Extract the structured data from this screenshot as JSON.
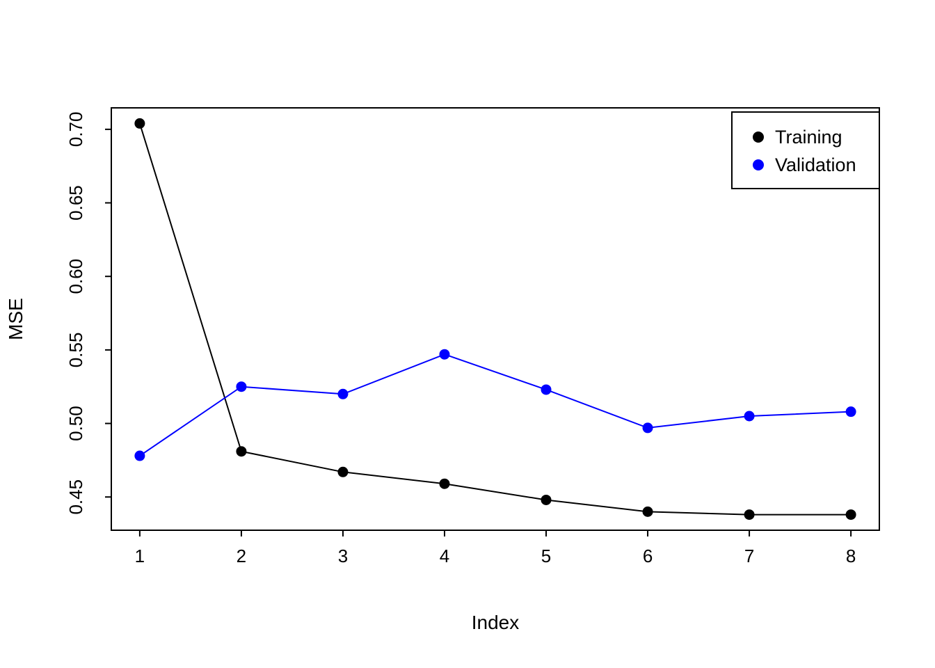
{
  "chart_data": {
    "type": "line",
    "title": "",
    "xlabel": "Index",
    "ylabel": "MSE",
    "x": [
      1,
      2,
      3,
      4,
      5,
      6,
      7,
      8
    ],
    "series": [
      {
        "name": "Training",
        "color": "#000000",
        "values": [
          0.704,
          0.481,
          0.467,
          0.459,
          0.448,
          0.44,
          0.438,
          0.438
        ]
      },
      {
        "name": "Validation",
        "color": "#0000ff",
        "values": [
          0.478,
          0.525,
          0.52,
          0.547,
          0.523,
          0.497,
          0.505,
          0.508
        ]
      }
    ],
    "xlim": [
      0.72,
      8.28
    ],
    "ylim": [
      0.4274,
      0.7146
    ],
    "xticks": [
      1,
      2,
      3,
      4,
      5,
      6,
      7,
      8
    ],
    "xtick_labels": [
      "1",
      "2",
      "3",
      "4",
      "5",
      "6",
      "7",
      "8"
    ],
    "yticks": [
      0.45,
      0.5,
      0.55,
      0.6,
      0.65,
      0.7
    ],
    "ytick_labels": [
      "0.45",
      "0.50",
      "0.55",
      "0.60",
      "0.65",
      "0.70"
    ],
    "grid": false,
    "legend": {
      "position": "top-right",
      "entries": [
        "Training",
        "Validation"
      ]
    },
    "colors": {
      "axis": "#000000",
      "background": "#ffffff",
      "training": "#000000",
      "validation": "#0000ff"
    }
  }
}
